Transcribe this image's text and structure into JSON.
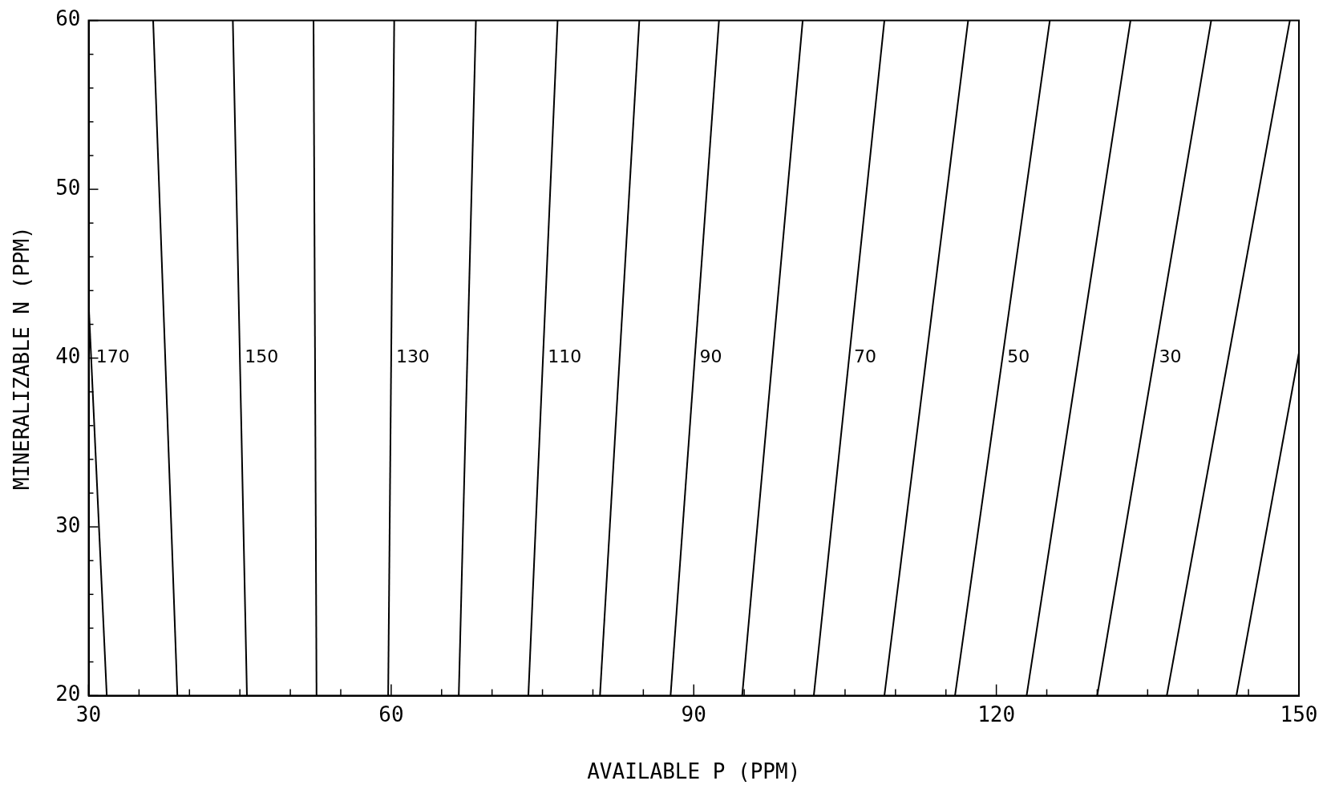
{
  "chart_data": {
    "type": "line",
    "xlabel": "AVAILABLE P (PPM)",
    "ylabel": "MINERALIZABLE N (PPM)",
    "xlim": [
      30,
      150
    ],
    "ylim": [
      20,
      60
    ],
    "xticks": [
      30,
      {
        "value": 35,
        "label": null
      },
      {
        "value": 40,
        "label": null
      },
      {
        "value": 45,
        "label": null
      },
      {
        "value": 50,
        "label": null
      },
      {
        "value": 55,
        "label": null
      },
      60,
      {
        "value": 65,
        "label": null
      },
      {
        "value": 70,
        "label": null
      },
      {
        "value": 75,
        "label": null
      },
      {
        "value": 80,
        "label": null
      },
      {
        "value": 85,
        "label": null
      },
      90,
      {
        "value": 95,
        "label": null
      },
      {
        "value": 100,
        "label": null
      },
      {
        "value": 105,
        "label": null
      },
      {
        "value": 110,
        "label": null
      },
      {
        "value": 115,
        "label": null
      },
      120,
      {
        "value": 125,
        "label": null
      },
      {
        "value": 130,
        "label": null
      },
      {
        "value": 135,
        "label": null
      },
      {
        "value": 140,
        "label": null
      },
      {
        "value": 145,
        "label": null
      },
      150
    ],
    "yticks": [
      20,
      {
        "value": 22,
        "label": null
      },
      {
        "value": 24,
        "label": null
      },
      {
        "value": 26,
        "label": null
      },
      {
        "value": 28,
        "label": null
      },
      30,
      {
        "value": 32,
        "label": null
      },
      {
        "value": 34,
        "label": null
      },
      {
        "value": 36,
        "label": null
      },
      {
        "value": 38,
        "label": null
      },
      40,
      {
        "value": 42,
        "label": null
      },
      {
        "value": 44,
        "label": null
      },
      {
        "value": 46,
        "label": null
      },
      {
        "value": 48,
        "label": null
      },
      50,
      {
        "value": 52,
        "label": null
      },
      {
        "value": 54,
        "label": null
      },
      {
        "value": 56,
        "label": null
      },
      {
        "value": 58,
        "label": null
      },
      60
    ],
    "grid": false,
    "legend": false,
    "marker": "none",
    "line_style": "solid",
    "series": [
      {
        "name": "170",
        "color": "#000000",
        "x": [
          31.8,
          30
        ],
        "values": [
          20,
          43.3
        ]
      },
      {
        "color": "#000000",
        "x": [
          38.8,
          36.4
        ],
        "values": [
          20,
          60
        ]
      },
      {
        "name": "150",
        "color": "#000000",
        "x": [
          45.7,
          44.3
        ],
        "values": [
          20,
          60
        ]
      },
      {
        "color": "#000000",
        "x": [
          52.6,
          52.3
        ],
        "values": [
          20,
          60
        ]
      },
      {
        "name": "130",
        "color": "#000000",
        "x": [
          59.7,
          60.3
        ],
        "values": [
          20,
          60
        ]
      },
      {
        "color": "#000000",
        "x": [
          66.7,
          68.4
        ],
        "values": [
          20,
          60
        ]
      },
      {
        "name": "110",
        "color": "#000000",
        "x": [
          73.6,
          76.5
        ],
        "values": [
          20,
          60
        ]
      },
      {
        "color": "#000000",
        "x": [
          80.7,
          84.6
        ],
        "values": [
          20,
          60
        ]
      },
      {
        "name": "90",
        "color": "#000000",
        "x": [
          87.7,
          92.5
        ],
        "values": [
          20,
          60
        ]
      },
      {
        "color": "#000000",
        "x": [
          94.8,
          100.8
        ],
        "values": [
          20,
          60
        ]
      },
      {
        "name": "70",
        "color": "#000000",
        "x": [
          101.9,
          108.9
        ],
        "values": [
          20,
          60
        ]
      },
      {
        "color": "#000000",
        "x": [
          108.9,
          117.2
        ],
        "values": [
          20,
          60
        ]
      },
      {
        "name": "50",
        "color": "#000000",
        "x": [
          115.9,
          125.3
        ],
        "values": [
          20,
          60
        ]
      },
      {
        "color": "#000000",
        "x": [
          123.0,
          133.3
        ],
        "values": [
          20,
          60
        ]
      },
      {
        "name": "30",
        "color": "#000000",
        "x": [
          130.0,
          141.3
        ],
        "values": [
          20,
          60
        ]
      },
      {
        "color": "#000000",
        "x": [
          136.9,
          149.1
        ],
        "values": [
          20,
          60
        ]
      },
      {
        "color": "#000000",
        "x": [
          143.8,
          150
        ],
        "values": [
          20,
          40.3
        ]
      }
    ]
  }
}
